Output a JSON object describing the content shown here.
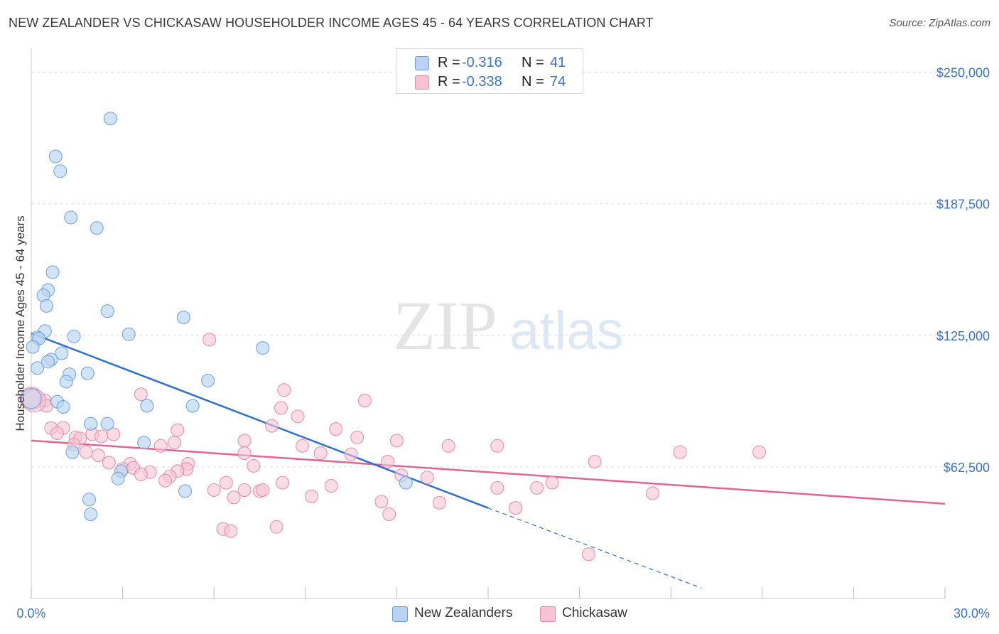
{
  "title": "NEW ZEALANDER VS CHICKASAW HOUSEHOLDER INCOME AGES 45 - 64 YEARS CORRELATION CHART",
  "source": "Source: ZipAtlas.com",
  "watermark": {
    "zip": "ZIP",
    "atlas": "atlas"
  },
  "legend": {
    "rows": [
      {
        "r_label": "R =",
        "r_value": "-0.316",
        "n_label": "N =",
        "n_value": "41"
      },
      {
        "r_label": "R =",
        "r_value": "-0.338",
        "n_label": "N =",
        "n_value": "74"
      }
    ]
  },
  "colors": {
    "new_zealanders_fill": "#b9d4f3",
    "new_zealanders_stroke": "#6b9fdc",
    "new_zealanders_line": "#2f6fce",
    "chickasaw_fill": "#f8c4d3",
    "chickasaw_stroke": "#e88aa6",
    "chickasaw_line": "#e0668f",
    "tick_text": "#3b73c4",
    "grid": "#dddddd"
  },
  "chart_data": {
    "type": "scatter",
    "title": "NEW ZEALANDER VS CHICKASAW HOUSEHOLDER INCOME AGES 45 - 64 YEARS CORRELATION CHART",
    "xlabel": "",
    "ylabel": "Householder Income Ages 45 - 64 years",
    "xlim": [
      0,
      30
    ],
    "ylim": [
      0,
      260000
    ],
    "x_tick_labels": [
      "0.0%",
      "30.0%"
    ],
    "y_ticks": [
      62500,
      125000,
      187500,
      250000
    ],
    "y_tick_labels": [
      "$62,500",
      "$125,000",
      "$187,500",
      "$250,000"
    ],
    "grid": true,
    "legend_position": "top-center",
    "series": [
      {
        "name": "New Zealanders",
        "points": [
          [
            2.6,
            228000
          ],
          [
            0.8,
            210000
          ],
          [
            0.95,
            203000
          ],
          [
            1.3,
            181000
          ],
          [
            2.15,
            176000
          ],
          [
            0.7,
            155000
          ],
          [
            0.55,
            146500
          ],
          [
            0.4,
            144000
          ],
          [
            0.5,
            139000
          ],
          [
            2.5,
            136500
          ],
          [
            5.0,
            133500
          ],
          [
            0.45,
            127000
          ],
          [
            3.2,
            125500
          ],
          [
            1.4,
            124500
          ],
          [
            0.2,
            124000
          ],
          [
            0.25,
            123500
          ],
          [
            0.05,
            119500
          ],
          [
            7.6,
            119000
          ],
          [
            1.0,
            116500
          ],
          [
            0.65,
            113500
          ],
          [
            0.55,
            112500
          ],
          [
            0.2,
            109500
          ],
          [
            1.25,
            106500
          ],
          [
            1.85,
            107000
          ],
          [
            5.8,
            103500
          ],
          [
            1.15,
            103000
          ],
          [
            0.85,
            93500
          ],
          [
            1.05,
            91000
          ],
          [
            3.8,
            91500
          ],
          [
            5.3,
            91500
          ],
          [
            1.95,
            83000
          ],
          [
            2.5,
            83000
          ],
          [
            3.7,
            74000
          ],
          [
            1.35,
            69500
          ],
          [
            2.95,
            60500
          ],
          [
            2.85,
            57000
          ],
          [
            12.3,
            55000
          ],
          [
            5.05,
            51000
          ],
          [
            1.9,
            47000
          ],
          [
            1.95,
            40000
          ],
          [
            0.0,
            95000
          ]
        ]
      },
      {
        "name": "Chickasaw",
        "points": [
          [
            5.85,
            123000
          ],
          [
            8.3,
            99000
          ],
          [
            3.6,
            97000
          ],
          [
            10.95,
            94000
          ],
          [
            0.45,
            94000
          ],
          [
            0.5,
            91500
          ],
          [
            8.2,
            90500
          ],
          [
            8.75,
            86500
          ],
          [
            7.9,
            82000
          ],
          [
            0.65,
            81000
          ],
          [
            1.05,
            81000
          ],
          [
            4.8,
            80000
          ],
          [
            10.0,
            80500
          ],
          [
            0.85,
            78500
          ],
          [
            2.0,
            78000
          ],
          [
            2.7,
            78000
          ],
          [
            2.3,
            77000
          ],
          [
            1.45,
            76500
          ],
          [
            1.6,
            76000
          ],
          [
            10.7,
            76500
          ],
          [
            12.0,
            75000
          ],
          [
            7.0,
            75000
          ],
          [
            4.7,
            74000
          ],
          [
            1.4,
            73000
          ],
          [
            8.9,
            72500
          ],
          [
            4.25,
            72500
          ],
          [
            13.7,
            72500
          ],
          [
            15.3,
            72500
          ],
          [
            1.8,
            69500
          ],
          [
            2.2,
            68000
          ],
          [
            7.0,
            69000
          ],
          [
            9.5,
            69000
          ],
          [
            10.5,
            68500
          ],
          [
            21.3,
            69500
          ],
          [
            23.9,
            69500
          ],
          [
            11.7,
            65000
          ],
          [
            2.55,
            64500
          ],
          [
            3.25,
            64000
          ],
          [
            18.5,
            65000
          ],
          [
            7.3,
            63000
          ],
          [
            3.0,
            61500
          ],
          [
            3.35,
            62000
          ],
          [
            5.15,
            64000
          ],
          [
            5.1,
            61500
          ],
          [
            4.8,
            60500
          ],
          [
            3.9,
            60000
          ],
          [
            3.6,
            59000
          ],
          [
            12.15,
            58500
          ],
          [
            4.55,
            58000
          ],
          [
            4.4,
            56000
          ],
          [
            13.0,
            57500
          ],
          [
            17.1,
            55000
          ],
          [
            8.25,
            55000
          ],
          [
            6.4,
            55000
          ],
          [
            9.85,
            53500
          ],
          [
            16.6,
            52500
          ],
          [
            15.3,
            52500
          ],
          [
            7.0,
            51500
          ],
          [
            6.0,
            51500
          ],
          [
            7.5,
            51000
          ],
          [
            7.6,
            51500
          ],
          [
            20.4,
            50000
          ],
          [
            9.2,
            48500
          ],
          [
            6.65,
            48000
          ],
          [
            11.5,
            46000
          ],
          [
            13.4,
            45500
          ],
          [
            15.9,
            43000
          ],
          [
            11.75,
            40000
          ],
          [
            6.3,
            33000
          ],
          [
            6.55,
            32000
          ],
          [
            8.05,
            34000
          ],
          [
            18.3,
            21000
          ],
          [
            0.0,
            95000
          ],
          [
            0.1,
            94000
          ]
        ]
      }
    ],
    "trendlines": [
      {
        "series": "New Zealanders",
        "solid": [
          [
            0,
            126000
          ],
          [
            15.0,
            43000
          ]
        ],
        "dashed": [
          [
            15.0,
            43000
          ],
          [
            22.0,
            5000
          ]
        ]
      },
      {
        "series": "Chickasaw",
        "solid": [
          [
            0,
            75000
          ],
          [
            30,
            45000
          ]
        ]
      }
    ]
  },
  "bottom_legend": [
    {
      "label": "New Zealanders"
    },
    {
      "label": "Chickasaw"
    }
  ]
}
